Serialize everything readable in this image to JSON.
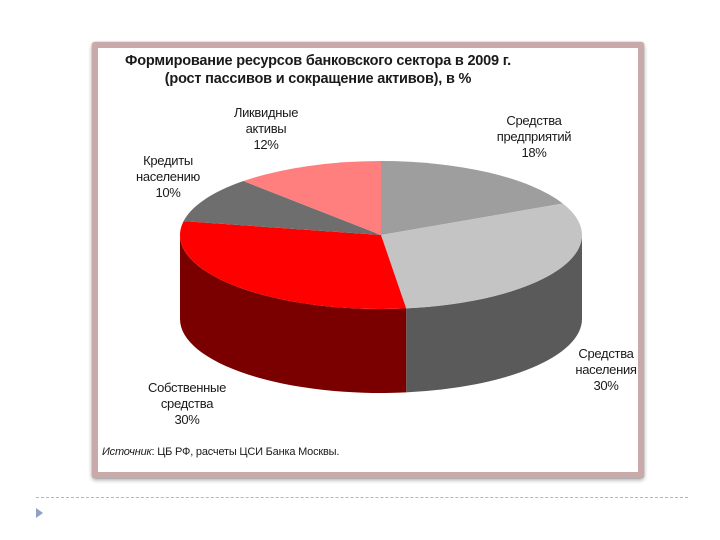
{
  "chart_data": {
    "type": "pie",
    "title": "Формирование ресурсов банковского сектора в 2009 г.",
    "subtitle": "(рост пассивов и сокращение активов), в %",
    "slices": [
      {
        "label_lines": [
          "Средства",
          "предприятий"
        ],
        "value": 18,
        "value_label": "18%",
        "color": "#9e9e9e",
        "side_color": "#6b6b6b"
      },
      {
        "label_lines": [
          "Средства",
          "населения"
        ],
        "value": 30,
        "value_label": "30%",
        "color": "#c4c4c4",
        "side_color": "#5a5a5a"
      },
      {
        "label_lines": [
          "Собственные",
          "средства"
        ],
        "value": 30,
        "value_label": "30%",
        "color": "#ff0000",
        "side_color": "#7a0000"
      },
      {
        "label_lines": [
          "Кредиты",
          "населению"
        ],
        "value": 10,
        "value_label": "10%",
        "color": "#6e6e6e",
        "side_color": "#404040"
      },
      {
        "label_lines": [
          "Ликвидные",
          "активы"
        ],
        "value": 12,
        "value_label": "12%",
        "color": "#ff7f7f",
        "side_color": "#b05050"
      }
    ]
  },
  "source": {
    "prefix": "Источник",
    "text": ": ЦБ РФ, расчеты ЦСИ Банка Москвы."
  }
}
